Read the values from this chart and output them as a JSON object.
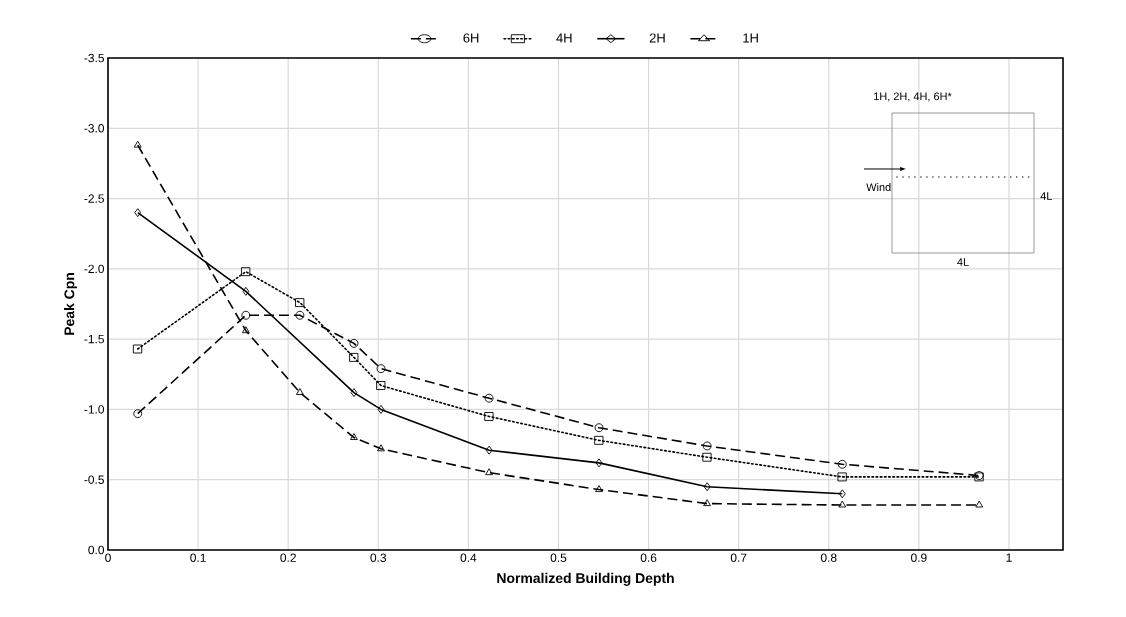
{
  "chart_data": {
    "type": "line",
    "xlabel": "Normalized Building Depth",
    "ylabel": "Peak Cpn",
    "xlim": [
      0,
      1.06
    ],
    "xticks": [
      0,
      0.1,
      0.2,
      0.3,
      0.4,
      0.5,
      0.6,
      0.7,
      0.8,
      0.9,
      1
    ],
    "ylim": [
      0,
      -3.5
    ],
    "yticks": [
      {
        "value": 0,
        "label": "0.0"
      },
      {
        "value": -0.5,
        "label": "-0.5"
      },
      {
        "value": -1,
        "label": "-1.0"
      },
      {
        "value": -1.5,
        "label": "-1.5"
      },
      {
        "value": -2,
        "label": "-2.0"
      },
      {
        "value": -2.5,
        "label": "-2.5"
      },
      {
        "value": -3,
        "label": "-3.0"
      },
      {
        "value": -3.5,
        "label": "-3.5"
      }
    ],
    "grid": true,
    "legend": "top",
    "annotations": [
      "1H, 2H, 4H, 6H*",
      "Wind",
      "4L",
      "4L"
    ],
    "series": [
      {
        "name": "6H",
        "color": "#000000",
        "marker": "circle",
        "line_style": "dashed",
        "x": [
          0.033,
          0.153,
          0.213,
          0.273,
          0.303,
          0.423,
          0.545,
          0.665,
          0.815,
          0.967
        ],
        "values": [
          -0.97,
          -1.67,
          -1.67,
          -1.47,
          -1.29,
          -1.08,
          -0.87,
          -0.74,
          -0.61,
          -0.53
        ]
      },
      {
        "name": "4H",
        "color": "#000000",
        "marker": "square",
        "line_style": "dotted",
        "x": [
          0.033,
          0.153,
          0.213,
          0.273,
          0.303,
          0.423,
          0.545,
          0.665,
          0.815,
          0.967
        ],
        "values": [
          -1.43,
          -1.98,
          -1.76,
          -1.37,
          -1.17,
          -0.95,
          -0.78,
          -0.66,
          -0.52,
          -0.52
        ]
      },
      {
        "name": "2H",
        "color": "#000000",
        "marker": "diamond",
        "line_style": "solid",
        "x": [
          0.033,
          0.153,
          0.273,
          0.303,
          0.423,
          0.545,
          0.665,
          0.815
        ],
        "values": [
          -2.4,
          -1.84,
          -1.12,
          -1.0,
          -0.71,
          -0.62,
          -0.45,
          -0.4
        ]
      },
      {
        "name": "1H",
        "color": "#000000",
        "marker": "triangle",
        "line_style": "dashed",
        "x": [
          0.033,
          0.153,
          0.213,
          0.273,
          0.303,
          0.423,
          0.545,
          0.665,
          0.815,
          0.967
        ],
        "values": [
          -2.88,
          -1.56,
          -1.12,
          -0.8,
          -0.72,
          -0.55,
          -0.43,
          -0.33,
          -0.32,
          -0.32
        ]
      }
    ]
  }
}
